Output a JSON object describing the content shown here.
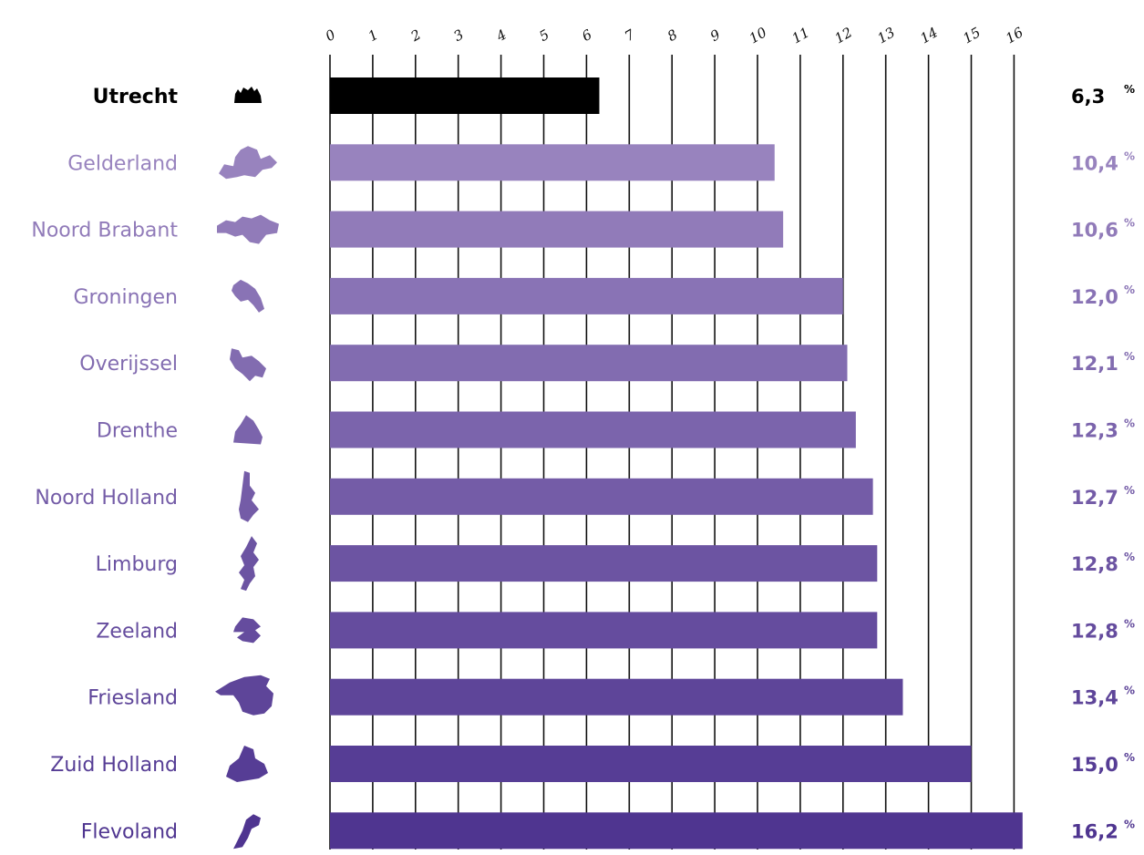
{
  "chart_data": {
    "type": "bar",
    "orientation": "horizontal",
    "categories": [
      "Utrecht",
      "Gelderland",
      "Noord Brabant",
      "Groningen",
      "Overijssel",
      "Drenthe",
      "Noord Holland",
      "Limburg",
      "Zeeland",
      "Friesland",
      "Zuid Holland",
      "Flevoland"
    ],
    "values": [
      6.3,
      10.4,
      10.6,
      12.0,
      12.1,
      12.3,
      12.7,
      12.8,
      12.8,
      13.4,
      15.0,
      16.2
    ],
    "value_labels": [
      "6,3",
      "10,4",
      "10,6",
      "12,0",
      "12,1",
      "12,3",
      "12,7",
      "12,8",
      "12,8",
      "13,4",
      "15,0",
      "16,2"
    ],
    "value_unit": "%",
    "x_ticks": [
      "0",
      "1",
      "2",
      "3",
      "4",
      "5",
      "6",
      "7",
      "8",
      "9",
      "10",
      "11",
      "12",
      "13",
      "14",
      "15",
      "16"
    ],
    "xlim": [
      0,
      16
    ],
    "grid": true,
    "title": "",
    "xlabel": "",
    "ylabel": "",
    "colors": {
      "highlight": "#000000",
      "gradient_start": "#9883be",
      "gradient_end": "#4f3590"
    },
    "icons": [
      "utrecht-province-icon",
      "gelderland-province-icon",
      "noord-brabant-province-icon",
      "groningen-province-icon",
      "overijssel-province-icon",
      "drenthe-province-icon",
      "noord-holland-province-icon",
      "limburg-province-icon",
      "zeeland-province-icon",
      "friesland-province-icon",
      "zuid-holland-province-icon",
      "flevoland-province-icon"
    ]
  }
}
